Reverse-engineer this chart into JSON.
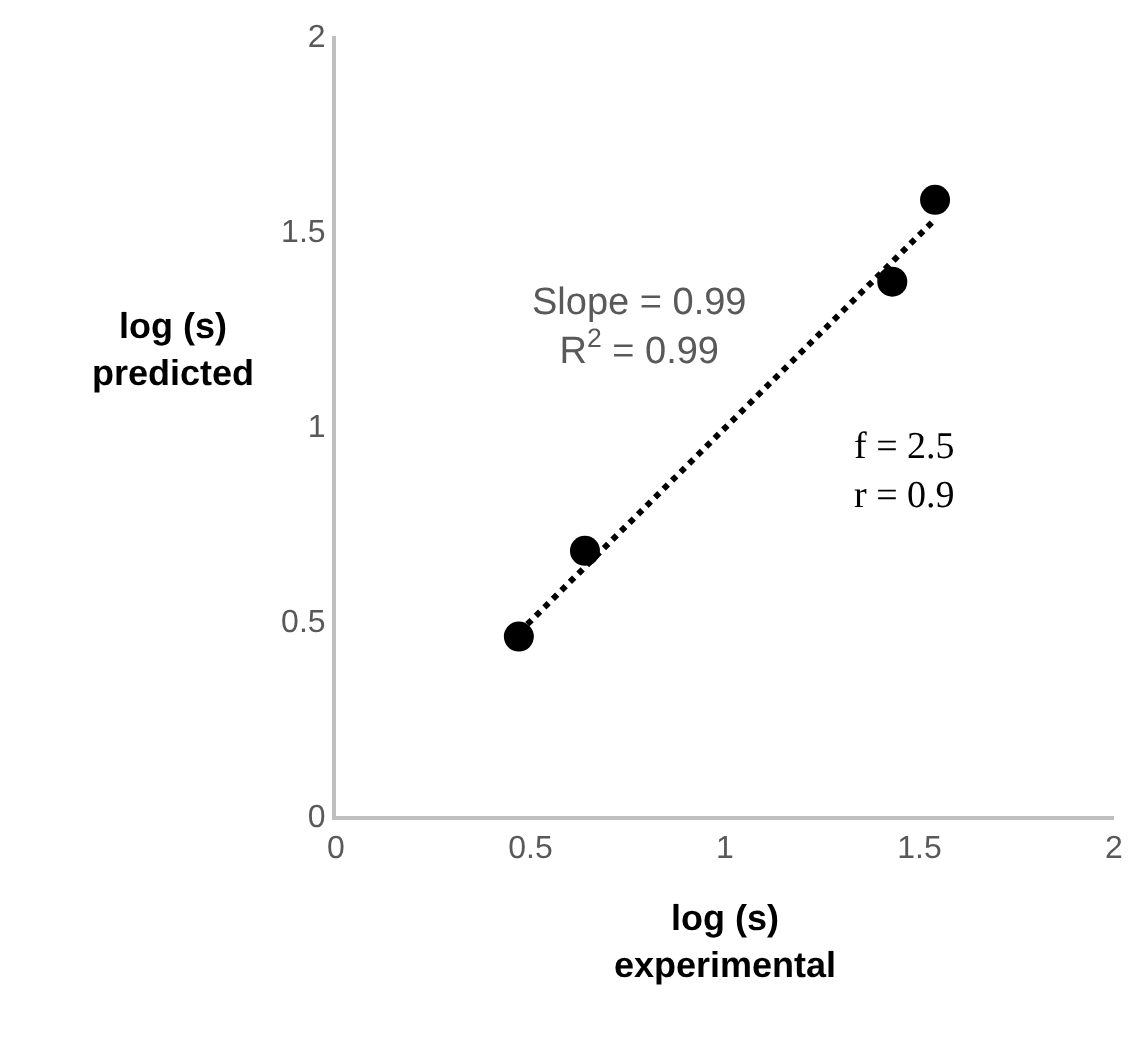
{
  "chart_data": {
    "type": "scatter",
    "xlabel": "log (s)\nexperimental",
    "ylabel": "log (s)\npredicted",
    "x": [
      0.47,
      0.64,
      1.43,
      1.54
    ],
    "series": [
      {
        "color": "#000000",
        "marker": "circle",
        "values": [
          0.46,
          0.68,
          1.37,
          1.58
        ]
      },
      {
        "type": "line",
        "color": "#000000",
        "line_style": "dotted",
        "marker": "none",
        "x": [
          0.47,
          1.54
        ],
        "values": [
          0.47,
          1.53
        ]
      }
    ],
    "xlim": [
      0,
      2
    ],
    "ylim": [
      0,
      2
    ],
    "xticks": [
      0,
      0.5,
      1,
      1.5,
      2
    ],
    "yticks": [
      0,
      0.5,
      1,
      1.5,
      2
    ],
    "annotations": [
      "Slope = 0.99\nR$^{2}$ = 0.99",
      "f = 2.5\nr = 0.9"
    ]
  }
}
